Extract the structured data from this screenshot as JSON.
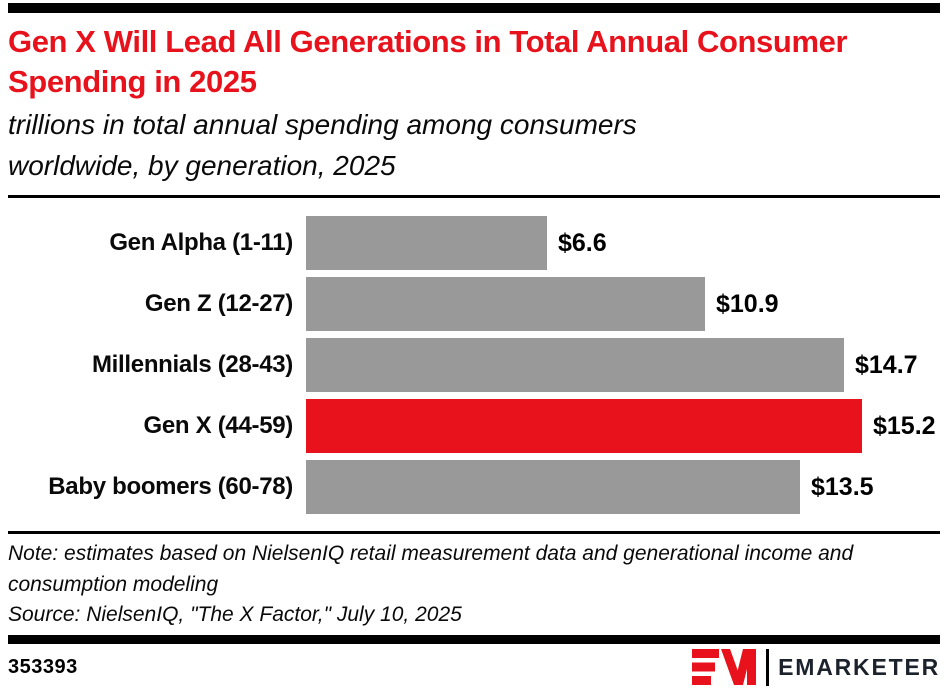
{
  "header": {
    "title": "Gen X Will Lead All Generations in Total Annual Consumer Spending in 2025",
    "subtitle": "trillions in total annual spending among consumers worldwide, by generation, 2025"
  },
  "chart_data": {
    "type": "bar",
    "orientation": "horizontal",
    "title": "Gen X Will Lead All Generations in Total Annual Consumer Spending in 2025",
    "subtitle": "trillions in total annual spending among consumers worldwide, by generation, 2025",
    "unit": "trillions of dollars",
    "categories": [
      "Gen Alpha (1-11)",
      "Gen Z (12-27)",
      "Millennials (28-43)",
      "Gen X (44-59)",
      "Baby boomers (60-78)"
    ],
    "values": [
      6.6,
      10.9,
      14.7,
      15.2,
      13.5
    ],
    "value_labels": [
      "$6.6",
      "$10.9",
      "$14.7",
      "$15.2",
      "$13.5"
    ],
    "colors": [
      "#999999",
      "#999999",
      "#999999",
      "#E8121C",
      "#999999"
    ],
    "highlight_category": "Gen X (44-59)",
    "xlim": [
      0,
      15.2
    ],
    "xlabel": "",
    "ylabel": "",
    "grid": false,
    "legend": false,
    "data_labels": "outside-end"
  },
  "footnote": {
    "note": "Note: estimates based on NielsenIQ retail measurement data and generational income and consumption modeling",
    "source": "Source: NielsenIQ, \"The X Factor,\" July 10, 2025"
  },
  "footer": {
    "chart_id": "353393",
    "brand": "EMARKETER"
  },
  "colors": {
    "accent_red": "#E8121C",
    "bar_gray": "#999999",
    "rule_black": "#000000",
    "wordmark": "#1B222B"
  }
}
